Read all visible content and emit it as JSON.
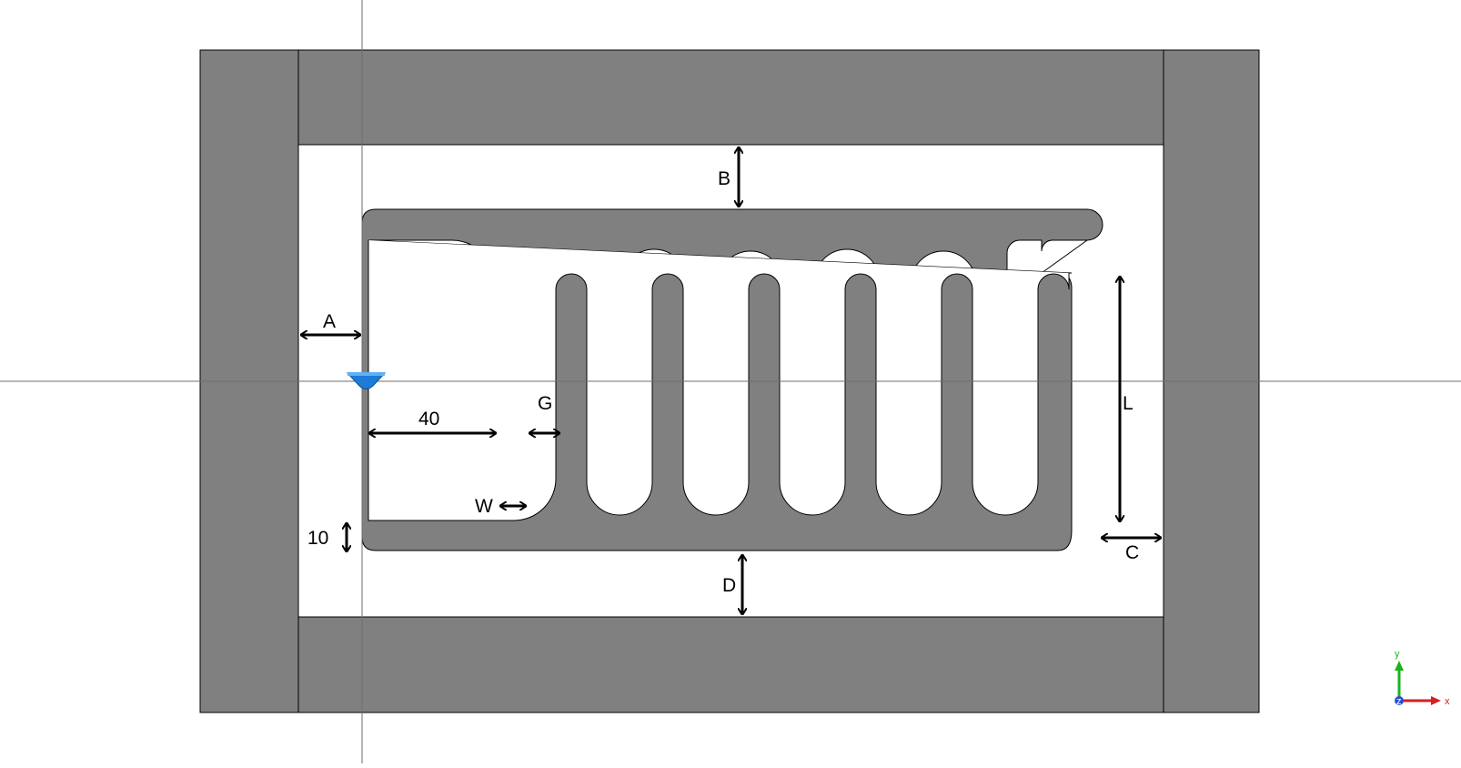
{
  "colors": {
    "background": "#ffffff",
    "metal": "#808080",
    "outline": "#000000",
    "crosshair": "#6e6e6e",
    "port": "#1e7bd6",
    "axis_x": "#d42020",
    "axis_y": "#1bb31b",
    "axis_z": "#2a4fd6"
  },
  "dimension_labels": {
    "a": "A",
    "b": "B",
    "c": "C",
    "d": "D",
    "g": "G",
    "l": "L",
    "w": "W",
    "finger_offset": "40",
    "bottom_gap": "10"
  },
  "axes": {
    "x": "x",
    "y": "y",
    "z": "z"
  },
  "icons": {
    "port": "port-marker-icon",
    "axis_triad": "axis-triad-icon"
  }
}
